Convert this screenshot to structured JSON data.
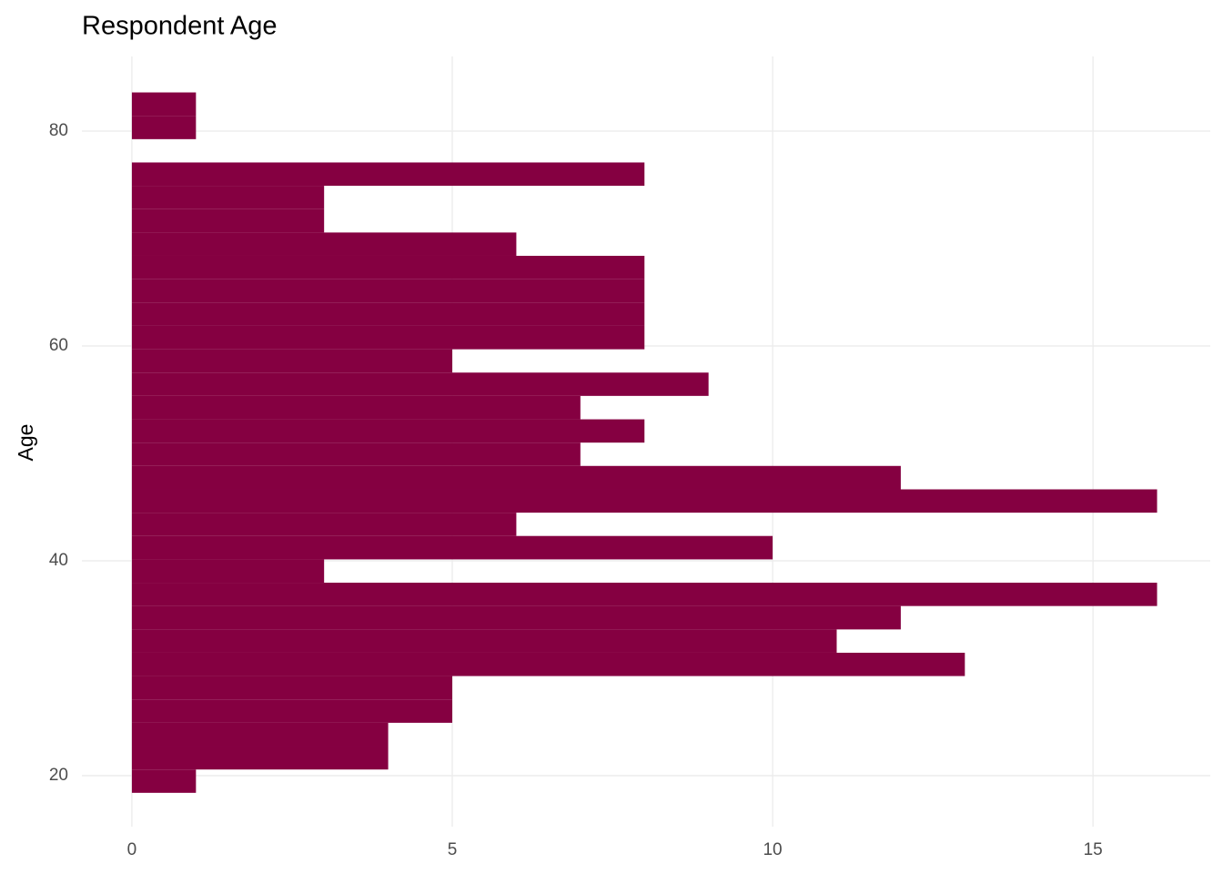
{
  "chart_data": {
    "type": "histogram",
    "orientation": "horizontal",
    "title": "Respondent Age",
    "y_label": "Age",
    "bins": [
      18.4,
      20.57,
      22.75,
      24.92,
      27.09,
      29.27,
      31.44,
      33.61,
      35.79,
      37.96,
      40.13,
      42.31,
      44.48,
      46.65,
      48.83,
      51.0,
      53.17,
      55.35,
      57.52,
      59.69,
      61.87,
      64.04,
      66.21,
      68.39,
      70.56,
      72.73,
      74.91,
      77.08,
      79.25,
      81.43,
      83.6
    ],
    "values": [
      1,
      4,
      4,
      5,
      5,
      13,
      11,
      12,
      16,
      3,
      10,
      6,
      16,
      12,
      7,
      8,
      7,
      9,
      5,
      8,
      8,
      8,
      8,
      6,
      3,
      3,
      8,
      0,
      1,
      1
    ],
    "color": "#850041",
    "xlim": [
      -0.78,
      16.83
    ],
    "xticks": [
      0,
      5,
      10,
      15
    ],
    "ylim": [
      15.25,
      86.95
    ],
    "yticks": [
      20,
      40,
      60,
      80
    ],
    "grid": true
  }
}
